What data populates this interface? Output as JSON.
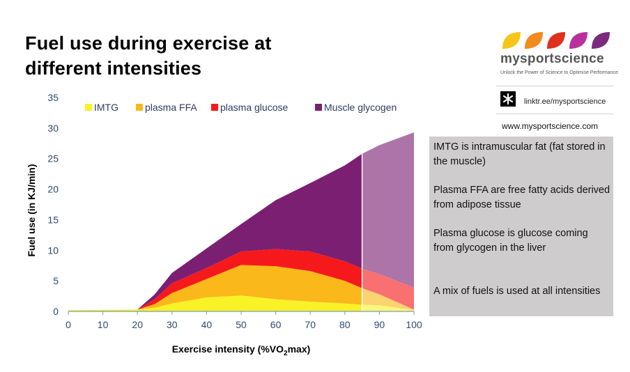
{
  "title": "Fuel use during exercise at different intensities",
  "brand": {
    "name": "mysportscience",
    "tagline": "Unlock the Power of Science to Optimise Performance",
    "linktree": "linktr.ee/mysportscience",
    "website": "www.mysportscience.com",
    "petal_colors": [
      "#f5c518",
      "#f28a1e",
      "#e0301e",
      "#b8309c",
      "#7b2a7e"
    ]
  },
  "notes": [
    "IMTG is intramuscular fat (fat stored in the muscle)",
    "Plasma FFA are free fatty acids derived from adipose tissue",
    "Plasma glucose is glucose coming from glycogen in the liver",
    "A mix of fuels is used at all intensities"
  ],
  "chart_data": {
    "type": "area",
    "stacked": true,
    "xlabel_prefix": "Exercise intensity (%VO",
    "xlabel_sub": "2",
    "xlabel_suffix": "max)",
    "ylabel": "Fuel use (in KJ/min)",
    "xlim": [
      0,
      100
    ],
    "ylim": [
      0,
      35
    ],
    "xticks": [
      0,
      10,
      20,
      30,
      40,
      50,
      60,
      70,
      80,
      90,
      100
    ],
    "yticks": [
      0,
      5,
      10,
      15,
      20,
      25,
      30,
      35
    ],
    "legend_position": "top",
    "highlight_from_x": 85,
    "x": [
      0,
      20,
      25,
      30,
      40,
      50,
      60,
      70,
      80,
      85,
      90,
      100
    ],
    "series": [
      {
        "name": "IMTG",
        "color": "#f9f227",
        "values": [
          0.2,
          0.3,
          0.6,
          1.3,
          2.3,
          2.6,
          2.0,
          1.6,
          1.3,
          1.1,
          1.0,
          0.2
        ]
      },
      {
        "name": "plasma FFA",
        "color": "#fab81b",
        "values": [
          0,
          0,
          0.6,
          1.7,
          3.0,
          5.0,
          5.4,
          5.0,
          3.7,
          2.7,
          1.8,
          0.1
        ]
      },
      {
        "name": "plasma glucose",
        "color": "#f6191b",
        "values": [
          0,
          0,
          0.8,
          1.6,
          1.8,
          2.2,
          2.8,
          3.2,
          3.2,
          3.2,
          3.3,
          3.6
        ]
      },
      {
        "name": "Muscle glycogen",
        "color": "#7b1f73",
        "values": [
          0,
          0,
          0.8,
          1.7,
          3.2,
          4.5,
          8.0,
          11.2,
          15.7,
          18.8,
          21.1,
          25.4
        ]
      }
    ]
  }
}
